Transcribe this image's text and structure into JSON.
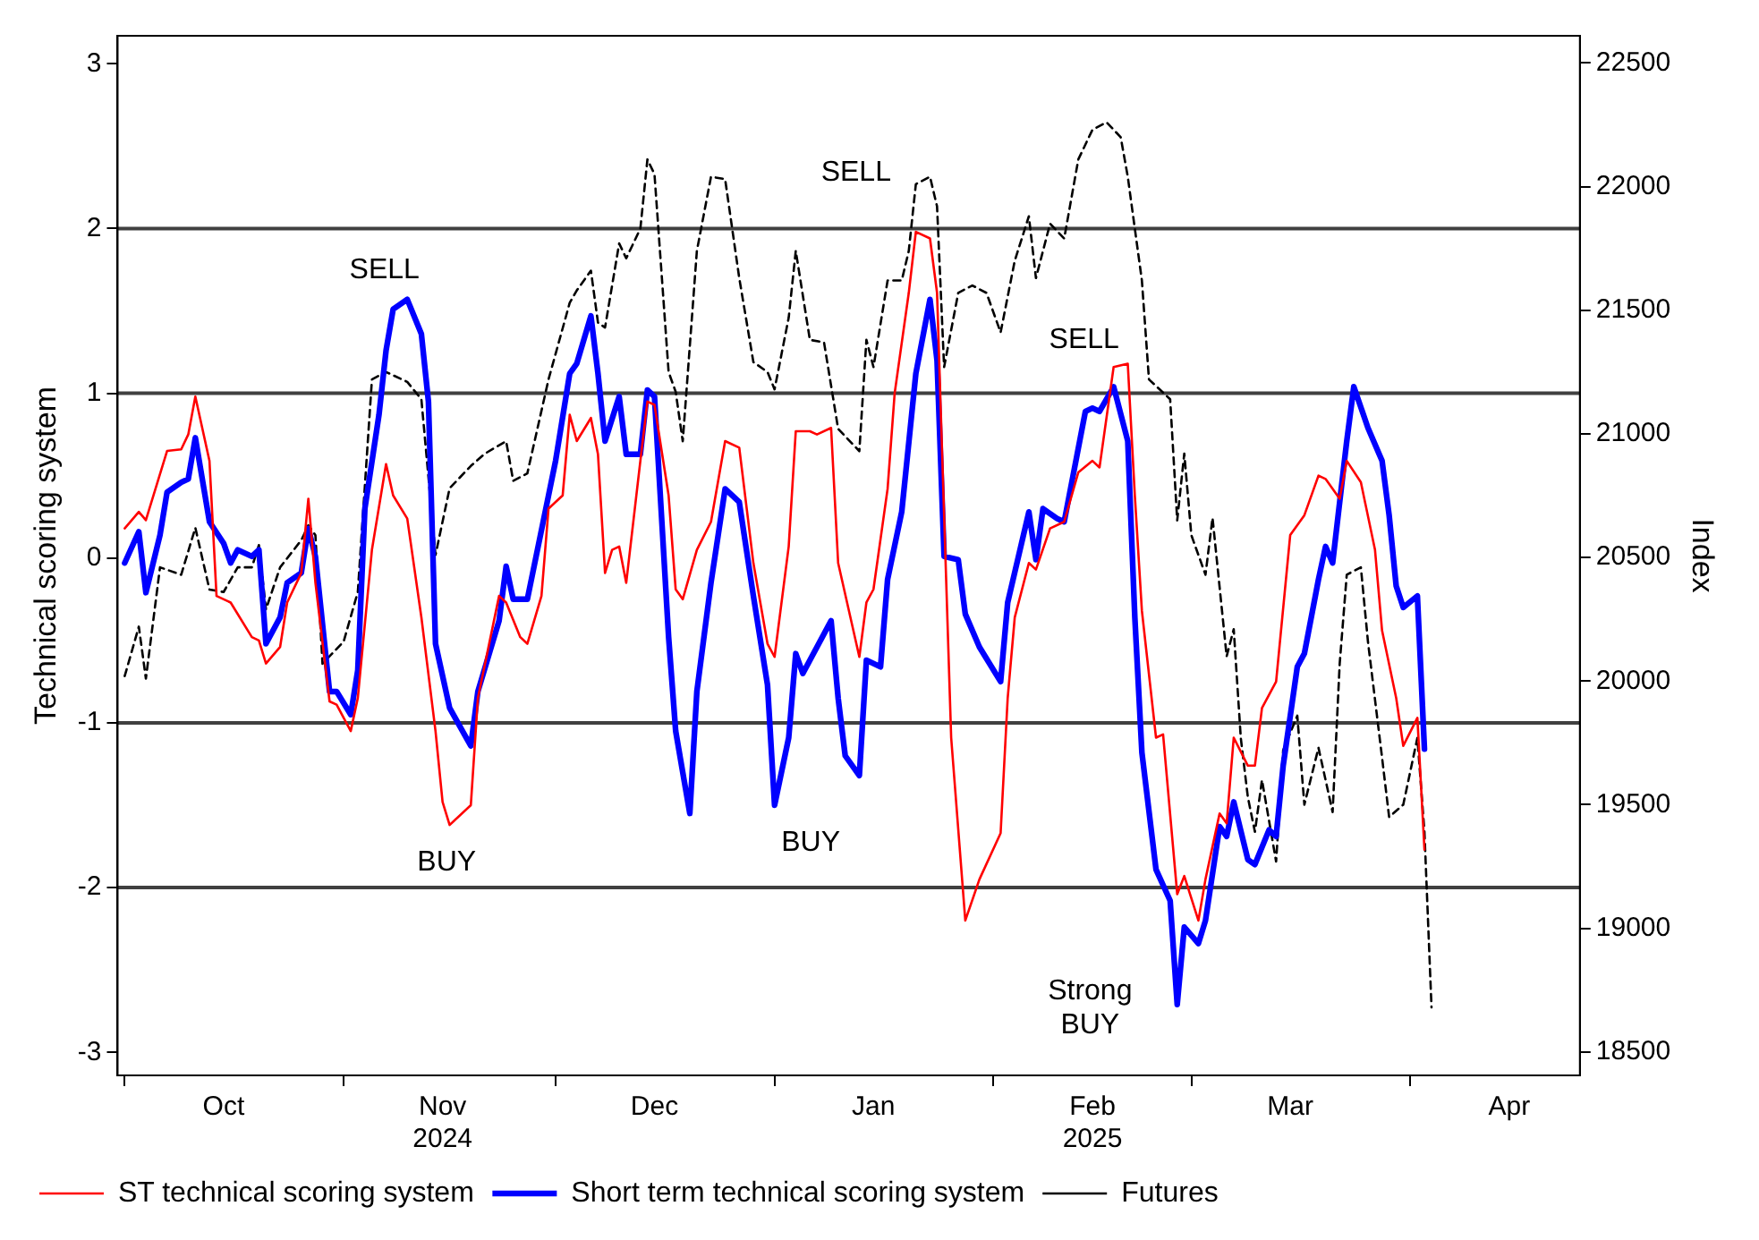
{
  "chart_data": {
    "type": "line",
    "xlim": [
      "2024-09-30",
      "2025-04-25"
    ],
    "xticks": [
      {
        "value": "2024-10-01",
        "label": null
      },
      {
        "value": "2024-10-15",
        "label": "Oct"
      },
      {
        "value": "2024-11-01",
        "label": null
      },
      {
        "value": "2024-11-15",
        "label": "Nov\n2024"
      },
      {
        "value": "2024-12-01",
        "label": null
      },
      {
        "value": "2024-12-15",
        "label": "Dec"
      },
      {
        "value": "2025-01-01",
        "label": null
      },
      {
        "value": "2025-01-15",
        "label": "Jan"
      },
      {
        "value": "2025-02-01",
        "label": null
      },
      {
        "value": "2025-02-15",
        "label": "Feb\n2025"
      },
      {
        "value": "2025-03-01",
        "label": null
      },
      {
        "value": "2025-03-15",
        "label": "Mar"
      },
      {
        "value": "2025-04-01",
        "label": null
      },
      {
        "value": "2025-04-15",
        "label": "Apr"
      }
    ],
    "ylim": [
      -3.14,
      3.17
    ],
    "yticks": [
      -3,
      -2,
      -1,
      0,
      1,
      2,
      3
    ],
    "y2lim": [
      18405,
      22610
    ],
    "y2ticks": [
      18500,
      19000,
      19500,
      20000,
      20500,
      21000,
      21500,
      22000,
      22500
    ],
    "ylabel": "Technical scoring system",
    "y2label": "Index",
    "grid": false,
    "legend": "bottom",
    "marker": "none",
    "ref_lines": [
      {
        "axis": "y",
        "value": 2,
        "color": "#404040"
      },
      {
        "axis": "y",
        "value": 1,
        "color": "#404040"
      },
      {
        "axis": "y",
        "value": -1,
        "color": "#404040"
      },
      {
        "axis": "y",
        "value": -2,
        "color": "#404040"
      }
    ],
    "annotations": [
      "SELL",
      "BUY",
      "BUY",
      "SELL",
      "SELL",
      "Strong\nBUY"
    ],
    "series": [
      {
        "name": "ST technical scoring system",
        "color": "#ff0000",
        "line_style": "solid",
        "x": [
          "2024-10-01",
          "2024-10-03",
          "2024-10-04",
          "2024-10-07",
          "2024-10-09",
          "2024-10-10",
          "2024-10-11",
          "2024-10-13",
          "2024-10-14",
          "2024-10-16",
          "2024-10-19",
          "2024-10-20",
          "2024-10-21",
          "2024-10-23",
          "2024-10-24",
          "2024-10-26",
          "2024-10-27",
          "2024-10-28",
          "2024-10-30",
          "2024-10-31",
          "2024-11-02",
          "2024-11-03",
          "2024-11-05",
          "2024-11-07",
          "2024-11-08",
          "2024-11-10",
          "2024-11-12",
          "2024-11-14",
          "2024-11-15",
          "2024-11-16",
          "2024-11-19",
          "2024-11-20",
          "2024-11-23",
          "2024-11-24",
          "2024-11-26",
          "2024-11-27",
          "2024-11-29",
          "2024-11-30",
          "2024-12-02",
          "2024-12-03",
          "2024-12-04",
          "2024-12-06",
          "2024-12-07",
          "2024-12-08",
          "2024-12-09",
          "2024-12-10",
          "2024-12-11",
          "2024-12-13",
          "2024-12-14",
          "2024-12-15",
          "2024-12-17",
          "2024-12-18",
          "2024-12-19",
          "2024-12-21",
          "2024-12-23",
          "2024-12-25",
          "2024-12-27",
          "2024-12-29",
          "2024-12-31",
          "2025-01-01",
          "2025-01-03",
          "2025-01-04",
          "2025-01-06",
          "2025-01-07",
          "2025-01-09",
          "2025-01-10",
          "2025-01-13",
          "2025-01-14",
          "2025-01-15",
          "2025-01-17",
          "2025-01-18",
          "2025-01-20",
          "2025-01-21",
          "2025-01-23",
          "2025-01-24",
          "2025-01-26",
          "2025-01-28",
          "2025-01-30",
          "2025-02-02",
          "2025-02-03",
          "2025-02-04",
          "2025-02-06",
          "2025-02-07",
          "2025-02-09",
          "2025-02-11",
          "2025-02-13",
          "2025-02-15",
          "2025-02-16",
          "2025-02-18",
          "2025-02-20",
          "2025-02-21",
          "2025-02-22",
          "2025-02-24",
          "2025-02-25",
          "2025-02-27",
          "2025-02-28",
          "2025-03-02",
          "2025-03-03",
          "2025-03-05",
          "2025-03-06",
          "2025-03-07",
          "2025-03-09",
          "2025-03-10",
          "2025-03-11",
          "2025-03-13",
          "2025-03-15",
          "2025-03-17",
          "2025-03-19",
          "2025-03-20",
          "2025-03-22",
          "2025-03-23",
          "2025-03-25",
          "2025-03-27",
          "2025-03-28",
          "2025-03-30",
          "2025-03-31",
          "2025-04-02",
          "2025-04-03"
        ],
        "values": [
          0.18,
          0.28,
          0.23,
          0.65,
          0.66,
          0.75,
          0.98,
          0.59,
          -0.23,
          -0.27,
          -0.48,
          -0.5,
          -0.64,
          -0.54,
          -0.27,
          -0.09,
          0.36,
          -0.15,
          -0.87,
          -0.89,
          -1.05,
          -0.85,
          0.05,
          0.57,
          0.38,
          0.24,
          -0.36,
          -1.05,
          -1.48,
          -1.62,
          -1.5,
          -0.85,
          -0.23,
          -0.27,
          -0.48,
          -0.52,
          -0.23,
          0.3,
          0.38,
          0.87,
          0.71,
          0.85,
          0.63,
          -0.09,
          0.05,
          0.07,
          -0.15,
          0.59,
          0.95,
          0.93,
          0.38,
          -0.19,
          -0.25,
          0.05,
          0.22,
          0.71,
          0.67,
          -0.03,
          -0.52,
          -0.6,
          0.07,
          0.77,
          0.77,
          0.75,
          0.79,
          -0.03,
          -0.6,
          -0.27,
          -0.19,
          0.42,
          1.0,
          1.61,
          1.98,
          1.94,
          1.61,
          -1.09,
          -2.2,
          -1.95,
          -1.67,
          -0.85,
          -0.36,
          -0.03,
          -0.07,
          0.18,
          0.22,
          0.52,
          0.59,
          0.55,
          1.16,
          1.18,
          0.38,
          -0.32,
          -1.09,
          -1.07,
          -2.04,
          -1.93,
          -2.2,
          -1.95,
          -1.55,
          -1.61,
          -1.09,
          -1.26,
          -1.26,
          -0.91,
          -0.75,
          0.14,
          0.26,
          0.5,
          0.48,
          0.36,
          0.59,
          0.46,
          0.05,
          -0.44,
          -0.85,
          -1.14,
          -0.97,
          -1.77
        ]
      },
      {
        "name": "Short term technical scoring system",
        "color": "#0000ff",
        "line_style": "solid",
        "x": [
          "2024-10-01",
          "2024-10-03",
          "2024-10-04",
          "2024-10-06",
          "2024-10-07",
          "2024-10-09",
          "2024-10-10",
          "2024-10-11",
          "2024-10-13",
          "2024-10-15",
          "2024-10-16",
          "2024-10-17",
          "2024-10-19",
          "2024-10-20",
          "2024-10-21",
          "2024-10-23",
          "2024-10-24",
          "2024-10-26",
          "2024-10-27",
          "2024-10-28",
          "2024-10-30",
          "2024-10-31",
          "2024-11-02",
          "2024-11-03",
          "2024-11-04",
          "2024-11-06",
          "2024-11-07",
          "2024-11-08",
          "2024-11-10",
          "2024-11-12",
          "2024-11-13",
          "2024-11-14",
          "2024-11-16",
          "2024-11-19",
          "2024-11-20",
          "2024-11-23",
          "2024-11-24",
          "2024-11-25",
          "2024-11-27",
          "2024-11-30",
          "2024-12-01",
          "2024-12-03",
          "2024-12-04",
          "2024-12-06",
          "2024-12-07",
          "2024-12-08",
          "2024-12-10",
          "2024-12-11",
          "2024-12-13",
          "2024-12-14",
          "2024-12-15",
          "2024-12-17",
          "2024-12-18",
          "2024-12-20",
          "2024-12-21",
          "2024-12-23",
          "2024-12-25",
          "2024-12-27",
          "2024-12-29",
          "2024-12-31",
          "2025-01-01",
          "2025-01-03",
          "2025-01-04",
          "2025-01-05",
          "2025-01-09",
          "2025-01-10",
          "2025-01-11",
          "2025-01-13",
          "2025-01-14",
          "2025-01-16",
          "2025-01-17",
          "2025-01-19",
          "2025-01-21",
          "2025-01-23",
          "2025-01-24",
          "2025-01-25",
          "2025-01-27",
          "2025-01-28",
          "2025-01-30",
          "2025-02-02",
          "2025-02-03",
          "2025-02-06",
          "2025-02-07",
          "2025-02-08",
          "2025-02-10",
          "2025-02-11",
          "2025-02-14",
          "2025-02-15",
          "2025-02-16",
          "2025-02-18",
          "2025-02-20",
          "2025-02-21",
          "2025-02-22",
          "2025-02-24",
          "2025-02-26",
          "2025-02-27",
          "2025-02-28",
          "2025-03-02",
          "2025-03-03",
          "2025-03-05",
          "2025-03-06",
          "2025-03-07",
          "2025-03-09",
          "2025-03-10",
          "2025-03-12",
          "2025-03-13",
          "2025-03-14",
          "2025-03-16",
          "2025-03-17",
          "2025-03-19",
          "2025-03-20",
          "2025-03-21",
          "2025-03-23",
          "2025-03-24",
          "2025-03-26",
          "2025-03-28",
          "2025-03-29",
          "2025-03-30",
          "2025-03-31",
          "2025-04-02",
          "2025-04-03"
        ],
        "values": [
          -0.03,
          0.16,
          -0.21,
          0.14,
          0.4,
          0.46,
          0.48,
          0.73,
          0.22,
          0.09,
          -0.03,
          0.05,
          0.01,
          0.05,
          -0.52,
          -0.36,
          -0.15,
          -0.09,
          0.18,
          0.01,
          -0.81,
          -0.81,
          -0.95,
          -0.68,
          0.3,
          0.87,
          1.26,
          1.51,
          1.57,
          1.36,
          0.95,
          -0.52,
          -0.91,
          -1.14,
          -0.81,
          -0.38,
          -0.05,
          -0.25,
          -0.25,
          0.38,
          0.59,
          1.12,
          1.18,
          1.47,
          1.12,
          0.71,
          0.98,
          0.63,
          0.63,
          1.02,
          0.98,
          -0.48,
          -1.05,
          -1.55,
          -0.81,
          -0.15,
          0.42,
          0.34,
          -0.23,
          -0.77,
          -1.5,
          -1.09,
          -0.58,
          -0.7,
          -0.38,
          -0.85,
          -1.2,
          -1.32,
          -0.62,
          -0.66,
          -0.13,
          0.28,
          1.12,
          1.57,
          1.2,
          0.01,
          -0.01,
          -0.34,
          -0.54,
          -0.75,
          -0.27,
          0.28,
          -0.01,
          0.3,
          0.24,
          0.22,
          0.89,
          0.91,
          0.89,
          1.04,
          0.71,
          -0.36,
          -1.18,
          -1.89,
          -2.08,
          -2.71,
          -2.24,
          -2.34,
          -2.2,
          -1.63,
          -1.69,
          -1.48,
          -1.83,
          -1.86,
          -1.65,
          -1.69,
          -1.26,
          -0.66,
          -0.58,
          -0.13,
          0.07,
          -0.03,
          0.71,
          1.04,
          0.79,
          0.59,
          0.26,
          -0.17,
          -0.3,
          -0.23,
          -1.16
        ]
      },
      {
        "name": "Futures",
        "color": "#000000",
        "line_style": "dashed",
        "axis": "y2",
        "x": [
          "2024-10-01",
          "2024-10-03",
          "2024-10-04",
          "2024-10-06",
          "2024-10-09",
          "2024-10-11",
          "2024-10-13",
          "2024-10-15",
          "2024-10-17",
          "2024-10-19",
          "2024-10-20",
          "2024-10-21",
          "2024-10-23",
          "2024-10-26",
          "2024-10-27",
          "2024-10-28",
          "2024-10-29",
          "2024-10-31",
          "2024-11-01",
          "2024-11-03",
          "2024-11-05",
          "2024-11-07",
          "2024-11-10",
          "2024-11-12",
          "2024-11-14",
          "2024-11-16",
          "2024-11-19",
          "2024-11-21",
          "2024-11-24",
          "2024-11-25",
          "2024-11-27",
          "2024-11-30",
          "2024-12-03",
          "2024-12-04",
          "2024-12-06",
          "2024-12-07",
          "2024-12-08",
          "2024-12-10",
          "2024-12-11",
          "2024-12-13",
          "2024-12-14",
          "2024-12-15",
          "2024-12-17",
          "2024-12-18",
          "2024-12-19",
          "2024-12-21",
          "2024-12-23",
          "2024-12-25",
          "2024-12-27",
          "2024-12-29",
          "2024-12-31",
          "2025-01-01",
          "2025-01-03",
          "2025-01-04",
          "2025-01-06",
          "2025-01-08",
          "2025-01-10",
          "2025-01-13",
          "2025-01-14",
          "2025-01-15",
          "2025-01-17",
          "2025-01-19",
          "2025-01-20",
          "2025-01-21",
          "2025-01-23",
          "2025-01-24",
          "2025-01-25",
          "2025-01-27",
          "2025-01-29",
          "2025-01-31",
          "2025-02-02",
          "2025-02-04",
          "2025-02-06",
          "2025-02-07",
          "2025-02-09",
          "2025-02-11",
          "2025-02-13",
          "2025-02-15",
          "2025-02-17",
          "2025-02-19",
          "2025-02-20",
          "2025-02-22",
          "2025-02-23",
          "2025-02-26",
          "2025-02-27",
          "2025-02-28",
          "2025-03-01",
          "2025-03-03",
          "2025-03-04",
          "2025-03-06",
          "2025-03-07",
          "2025-03-08",
          "2025-03-09",
          "2025-03-10",
          "2025-03-11",
          "2025-03-13",
          "2025-03-14",
          "2025-03-16",
          "2025-03-17",
          "2025-03-19",
          "2025-03-21",
          "2025-03-22",
          "2025-03-23",
          "2025-03-25",
          "2025-03-26",
          "2025-03-28",
          "2025-03-29",
          "2025-03-31",
          "2025-04-02",
          "2025-04-03",
          "2025-04-04"
        ],
        "values": [
          20020,
          20220,
          20010,
          20460,
          20430,
          20620,
          20370,
          20360,
          20460,
          20460,
          20550,
          20290,
          20460,
          20570,
          20630,
          20590,
          20070,
          20130,
          20160,
          20360,
          21220,
          21250,
          21210,
          21140,
          20510,
          20780,
          20870,
          20920,
          20970,
          20810,
          20840,
          21220,
          21530,
          21580,
          21660,
          21450,
          21430,
          21770,
          21710,
          21830,
          22110,
          22050,
          21250,
          21170,
          20970,
          21740,
          22040,
          22030,
          21630,
          21290,
          21250,
          21180,
          21470,
          21740,
          21380,
          21370,
          21020,
          20930,
          21380,
          21270,
          21620,
          21620,
          21740,
          22010,
          22040,
          21920,
          21270,
          21570,
          21600,
          21570,
          21410,
          21700,
          21880,
          21630,
          21850,
          21790,
          22110,
          22230,
          22260,
          22200,
          22040,
          21620,
          21220,
          21140,
          20650,
          20920,
          20590,
          20430,
          20660,
          20100,
          20210,
          19770,
          19530,
          19390,
          19600,
          19270,
          19720,
          19860,
          19500,
          19730,
          19470,
          20070,
          20430,
          20460,
          20160,
          19690,
          19450,
          19500,
          19770,
          19390,
          18680
        ]
      }
    ]
  }
}
